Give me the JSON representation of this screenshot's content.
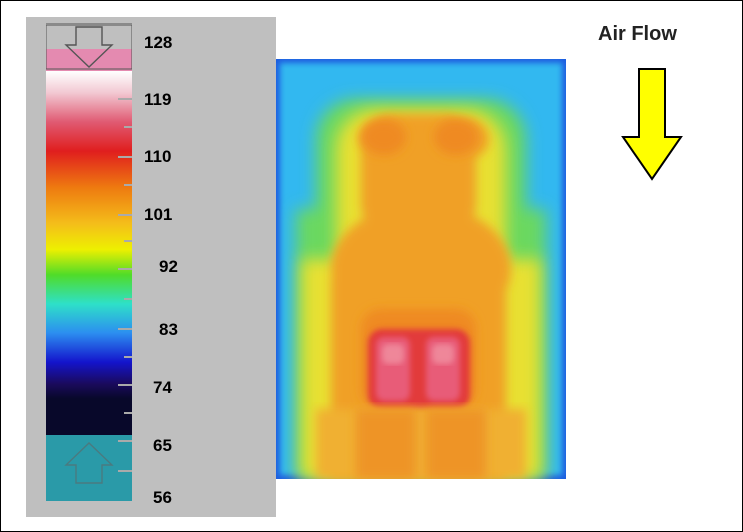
{
  "scale": {
    "ticks": [
      "128",
      "119",
      "110",
      "101",
      "92",
      "83",
      "74",
      "65",
      "56"
    ]
  },
  "airflow": {
    "label": "Air Flow"
  },
  "colors": {
    "panel": "#bfbfbf",
    "arrow_fill": "#ffff00",
    "hot_spot": "#e84a60",
    "background_cool": "#33b8f0"
  }
}
